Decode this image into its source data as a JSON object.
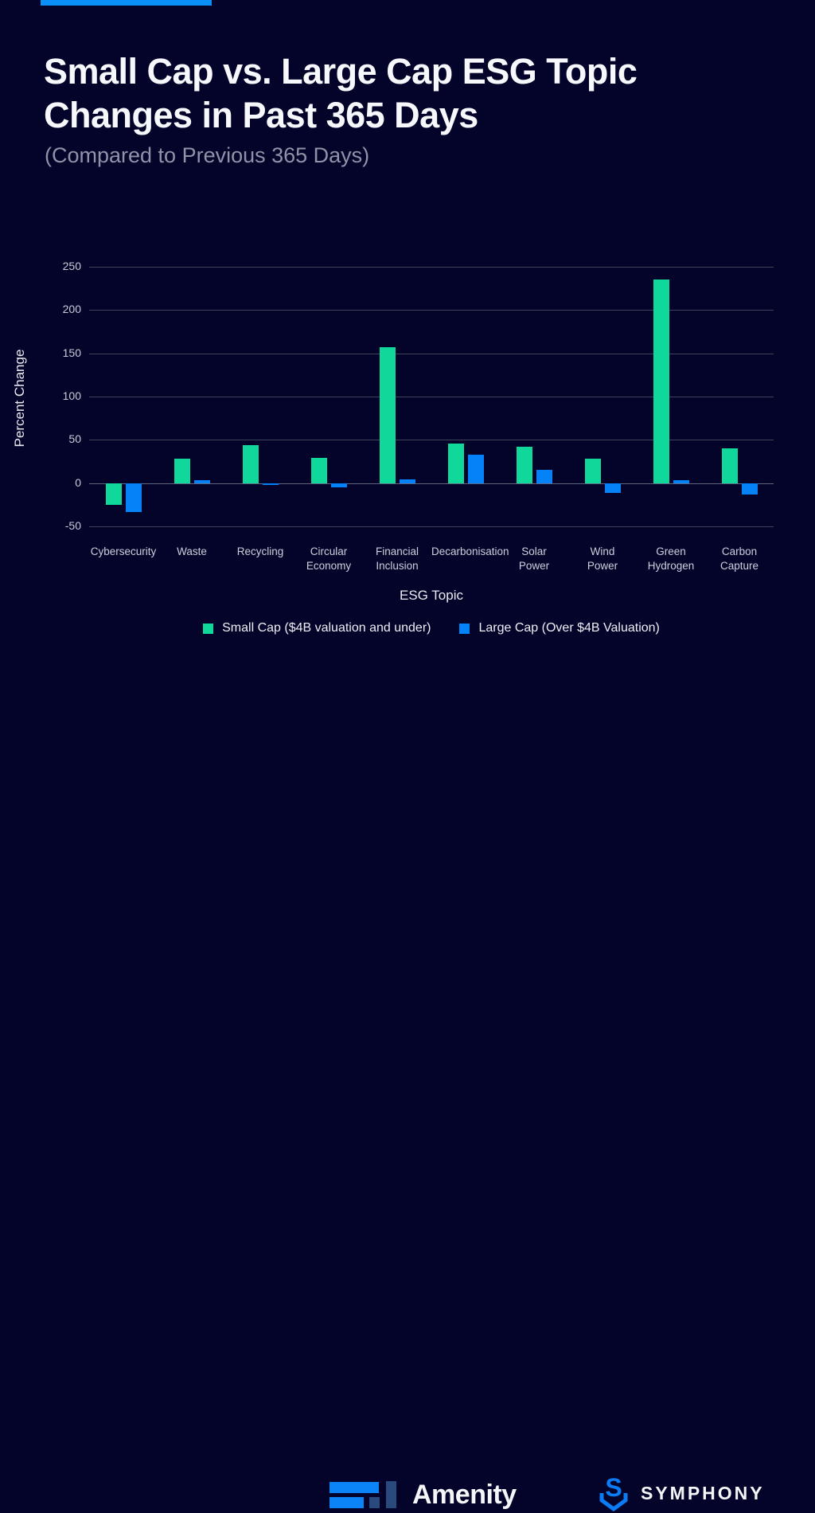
{
  "page": {
    "background": "#04042a",
    "accent_bar_color": "#0b8ff8"
  },
  "header": {
    "title_line1": "Small Cap vs. Large Cap ESG Topic",
    "title_line2": "Changes in Past 365 Days",
    "subtitle": "(Compared to Previous 365 Days)"
  },
  "chart_data": {
    "type": "bar",
    "title": "Small Cap vs. Large Cap ESG Topic Changes in Past 365 Days",
    "xlabel": "ESG Topic",
    "ylabel": "Percent Change",
    "ylim": [
      -50,
      250
    ],
    "yticks": [
      250,
      200,
      150,
      100,
      50,
      0,
      -50
    ],
    "grid": true,
    "legend_position": "bottom",
    "categories": [
      "Cybersecurity",
      "Waste",
      "Recycling",
      "Circular Economy",
      "Financial Inclusion",
      "Decarbonisation",
      "Solar Power",
      "Wind Power",
      "Green Hydrogen",
      "Carbon Capture"
    ],
    "category_lines": [
      [
        "Cybersecurity"
      ],
      [
        "Waste"
      ],
      [
        "Recycling"
      ],
      [
        "Circular",
        "Economy"
      ],
      [
        "Financial",
        "Inclusion"
      ],
      [
        "Decarbonisation"
      ],
      [
        "Solar",
        "Power"
      ],
      [
        "Wind",
        "Power"
      ],
      [
        "Green",
        "Hydrogen"
      ],
      [
        "Carbon",
        "Capture"
      ]
    ],
    "series": [
      {
        "name": "Small Cap ($4B valuation and under)",
        "color": "#10d89a",
        "values": [
          -25,
          28,
          44,
          29,
          157,
          46,
          42,
          28,
          235,
          40
        ]
      },
      {
        "name": "Large Cap (Over $4B Valuation)",
        "color": "#0682f9",
        "values": [
          -33,
          3,
          -2,
          -5,
          4,
          33,
          15,
          -11,
          3,
          -13
        ]
      }
    ]
  },
  "footer": {
    "amenity_label": "Amenity",
    "symphony_label": "SYMPHONY",
    "amenity_bright_blue": "#0b84f8",
    "amenity_dark_blue": "#2a4a7d",
    "symphony_blue": "#0b7cf6"
  }
}
